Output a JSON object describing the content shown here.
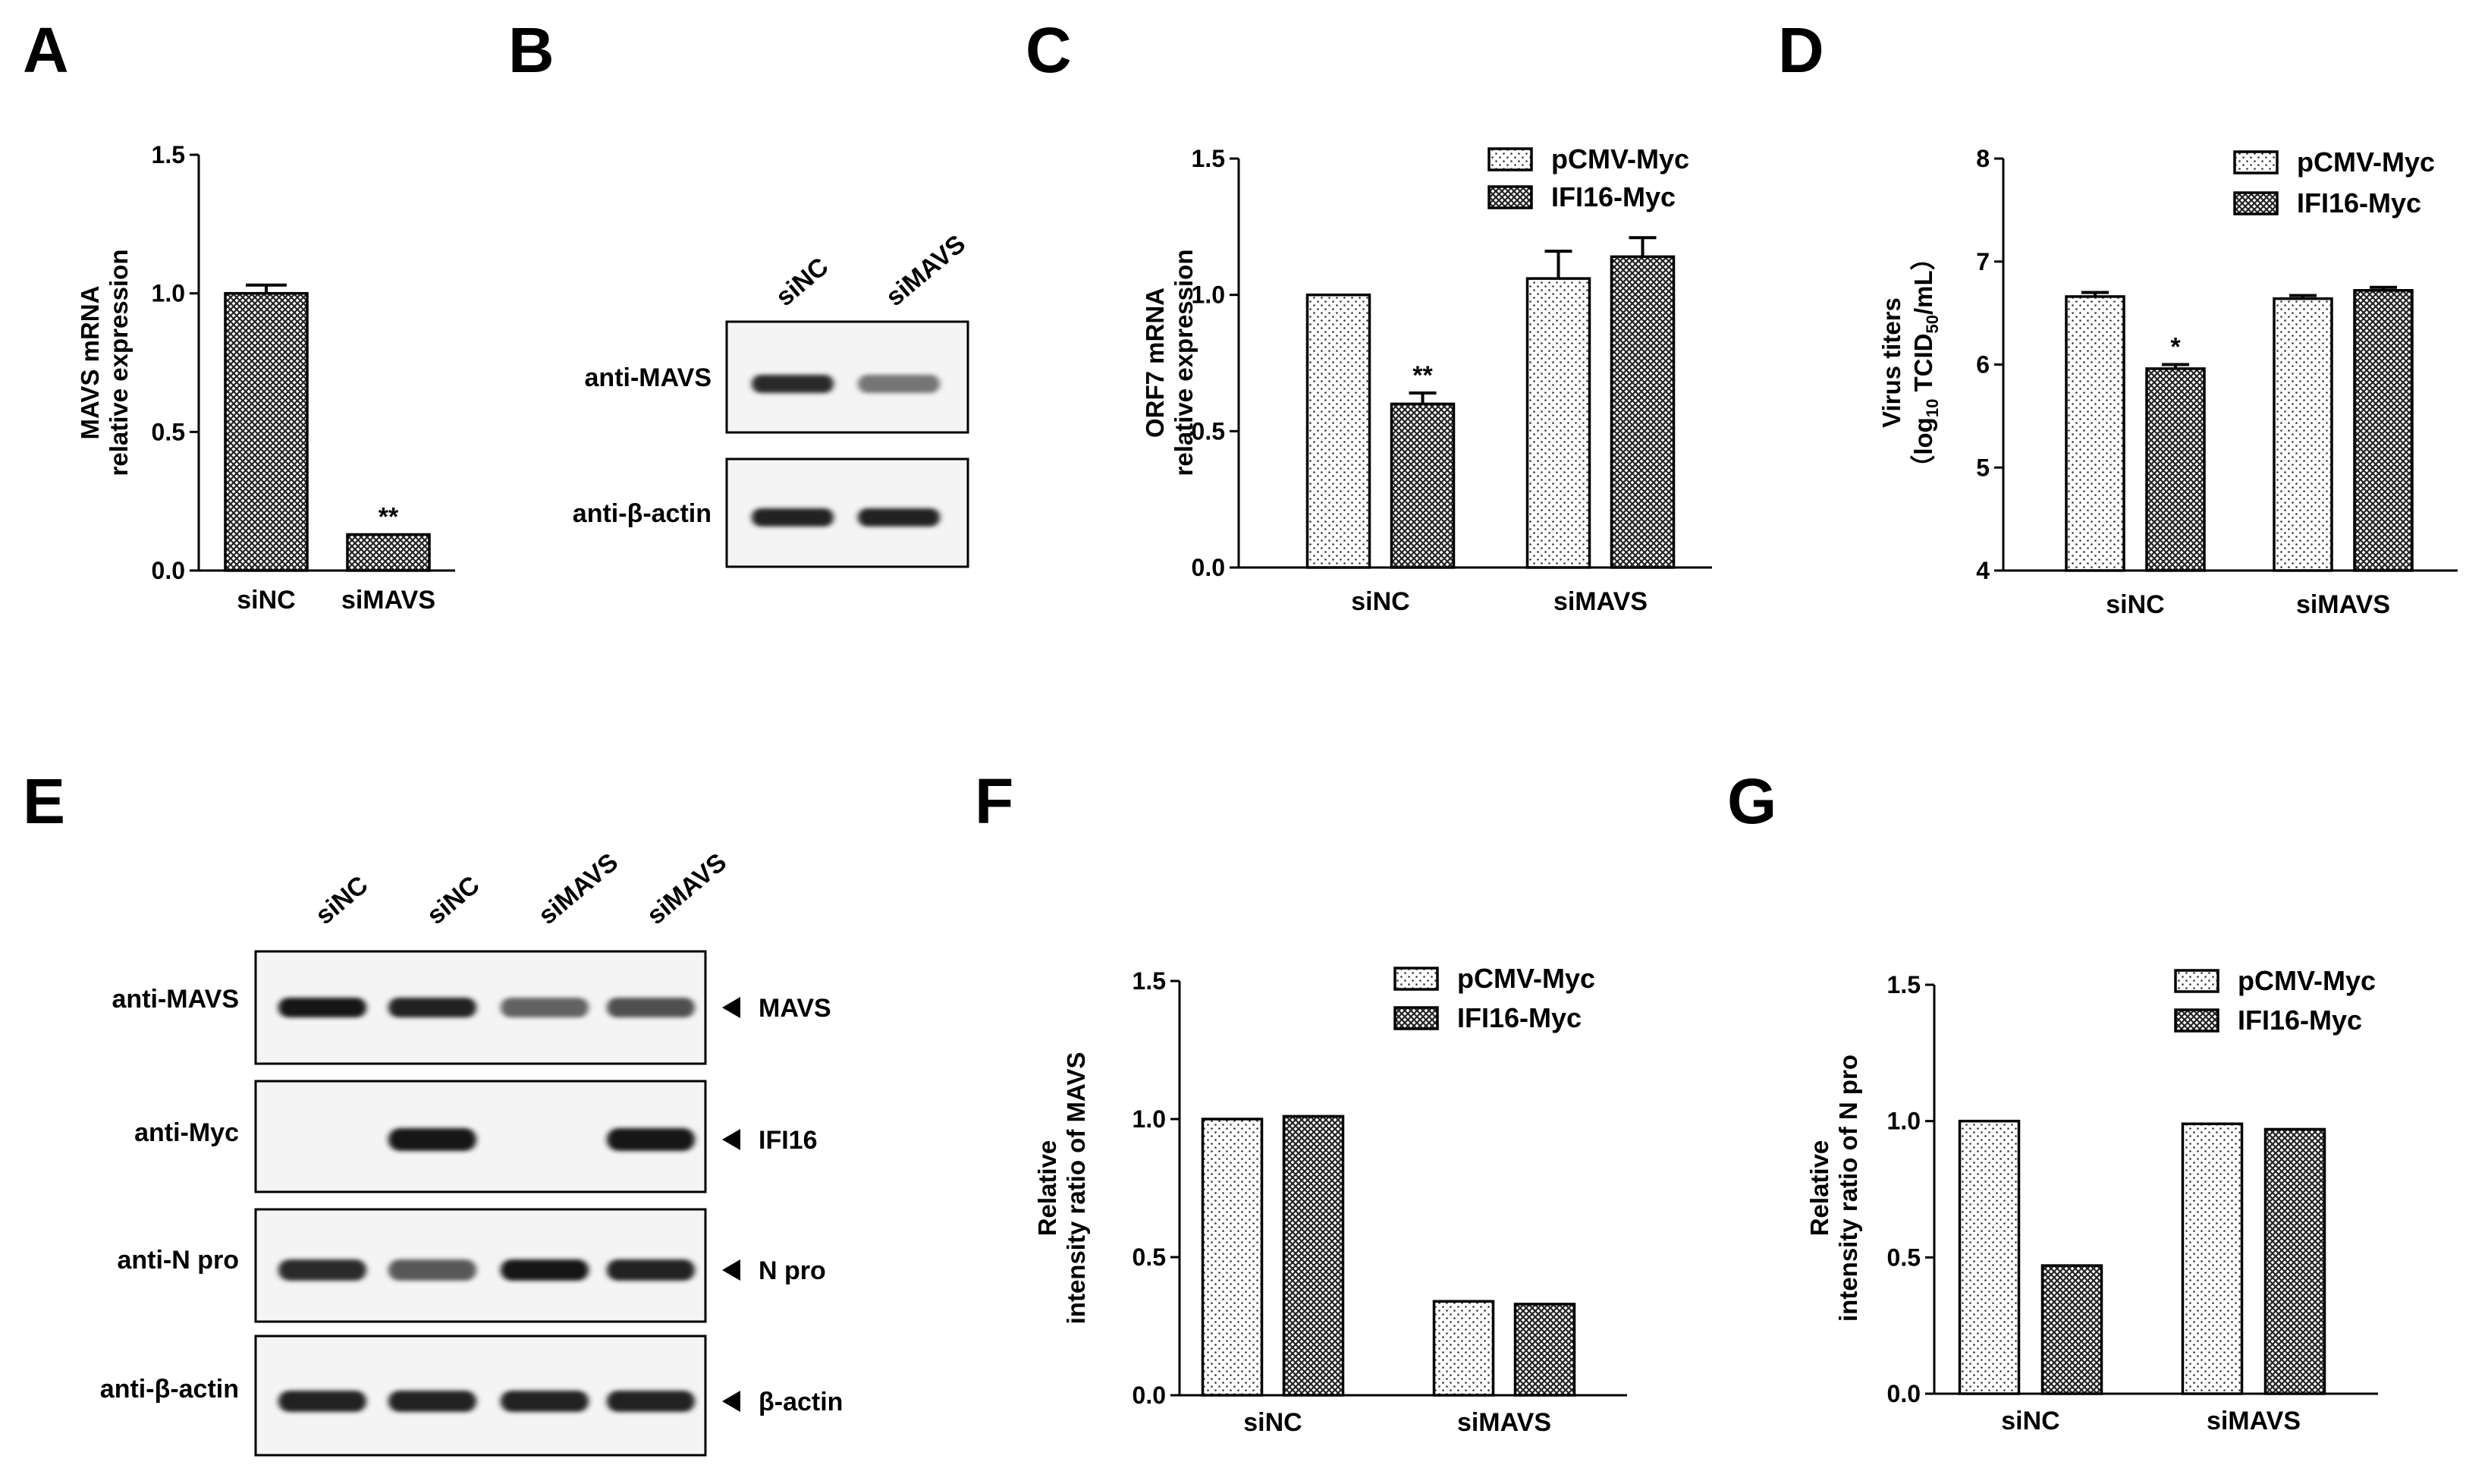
{
  "panels": {
    "A": {
      "letter": "A",
      "chart_data": {
        "type": "bar",
        "categories": [
          "siNC",
          "siMAVS"
        ],
        "values": [
          1.0,
          0.13
        ],
        "errors": [
          0.03,
          0
        ],
        "significance": [
          "",
          "**"
        ],
        "ylabel_lines": [
          "MAVS mRNA",
          "relative expression"
        ],
        "ylim": [
          0,
          1.5
        ],
        "yticks": [
          "0.0",
          "0.5",
          "1.0",
          "1.5"
        ]
      }
    },
    "B": {
      "letter": "B",
      "lanes": [
        "siNC",
        "siMAVS"
      ],
      "rows": [
        {
          "label": "anti-MAVS",
          "intensity": [
            0.85,
            0.45
          ]
        },
        {
          "label": "anti-β-actin",
          "intensity": [
            0.9,
            0.9
          ]
        }
      ]
    },
    "C": {
      "letter": "C",
      "chart_data": {
        "type": "bar",
        "categories": [
          "siNC",
          "siMAVS"
        ],
        "series": [
          {
            "name": "pCMV-Myc",
            "values": [
              1.0,
              1.06
            ],
            "errors": [
              0,
              0.1
            ],
            "pattern": "dots"
          },
          {
            "name": "IFI16-Myc",
            "values": [
              0.6,
              1.14
            ],
            "errors": [
              0.04,
              0.07
            ],
            "pattern": "crosshatch"
          }
        ],
        "significance": [
          [
            "",
            "**"
          ],
          [
            "",
            ""
          ]
        ],
        "ylabel_lines": [
          "ORF7 mRNA",
          "relative expression"
        ],
        "ylim": [
          0,
          1.5
        ],
        "yticks": [
          "0.0",
          "0.5",
          "1.0",
          "1.5"
        ]
      }
    },
    "D": {
      "letter": "D",
      "chart_data": {
        "type": "bar",
        "categories": [
          "siNC",
          "siMAVS"
        ],
        "series": [
          {
            "name": "pCMV-Myc",
            "values": [
              6.66,
              6.64
            ],
            "errors": [
              0.04,
              0.03
            ],
            "pattern": "dots"
          },
          {
            "name": "IFI16-Myc",
            "values": [
              5.96,
              6.72
            ],
            "errors": [
              0.04,
              0.03
            ],
            "pattern": "crosshatch"
          }
        ],
        "significance": [
          [
            "",
            "*"
          ],
          [
            "",
            ""
          ]
        ],
        "ylabel_line1": "Virus titers",
        "ylabel_line2_parts": [
          "（log",
          "10",
          " TCID",
          "50",
          "/mL）"
        ],
        "ylim": [
          4,
          8
        ],
        "yticks": [
          "4",
          "5",
          "6",
          "7",
          "8"
        ]
      }
    },
    "E": {
      "letter": "E",
      "lanes": [
        "siNC",
        "siNC",
        "siMAVS",
        "siMAVS"
      ],
      "rows": [
        {
          "label": "anti-MAVS",
          "band": "MAVS",
          "intensity": [
            0.95,
            0.9,
            0.55,
            0.65
          ]
        },
        {
          "label": "anti-Myc",
          "band": "IFI16",
          "intensity": [
            0,
            0.95,
            0,
            0.95
          ]
        },
        {
          "label": "anti-N pro",
          "band": "N pro",
          "intensity": [
            0.85,
            0.6,
            0.95,
            0.9
          ]
        },
        {
          "label": "anti-β-actin",
          "band": "β-actin",
          "intensity": [
            0.9,
            0.9,
            0.9,
            0.9
          ]
        }
      ]
    },
    "F": {
      "letter": "F",
      "chart_data": {
        "type": "bar",
        "categories": [
          "siNC",
          "siMAVS"
        ],
        "series": [
          {
            "name": "pCMV-Myc",
            "values": [
              1.0,
              0.34
            ],
            "pattern": "dots"
          },
          {
            "name": "IFI16-Myc",
            "values": [
              1.01,
              0.33
            ],
            "pattern": "crosshatch"
          }
        ],
        "ylabel_lines": [
          "Relative",
          "intensity ratio of  MAVS"
        ],
        "ylim": [
          0,
          1.5
        ],
        "yticks": [
          "0.0",
          "0.5",
          "1.0",
          "1.5"
        ]
      }
    },
    "G": {
      "letter": "G",
      "chart_data": {
        "type": "bar",
        "categories": [
          "siNC",
          "siMAVS"
        ],
        "series": [
          {
            "name": "pCMV-Myc",
            "values": [
              1.0,
              0.99
            ],
            "pattern": "dots"
          },
          {
            "name": "IFI16-Myc",
            "values": [
              0.47,
              0.97
            ],
            "pattern": "crosshatch"
          }
        ],
        "ylabel_lines": [
          "Relative",
          "intensity ratio of  N pro"
        ],
        "ylim": [
          0,
          1.5
        ],
        "yticks": [
          "0.0",
          "0.5",
          "1.0",
          "1.5"
        ]
      }
    }
  }
}
